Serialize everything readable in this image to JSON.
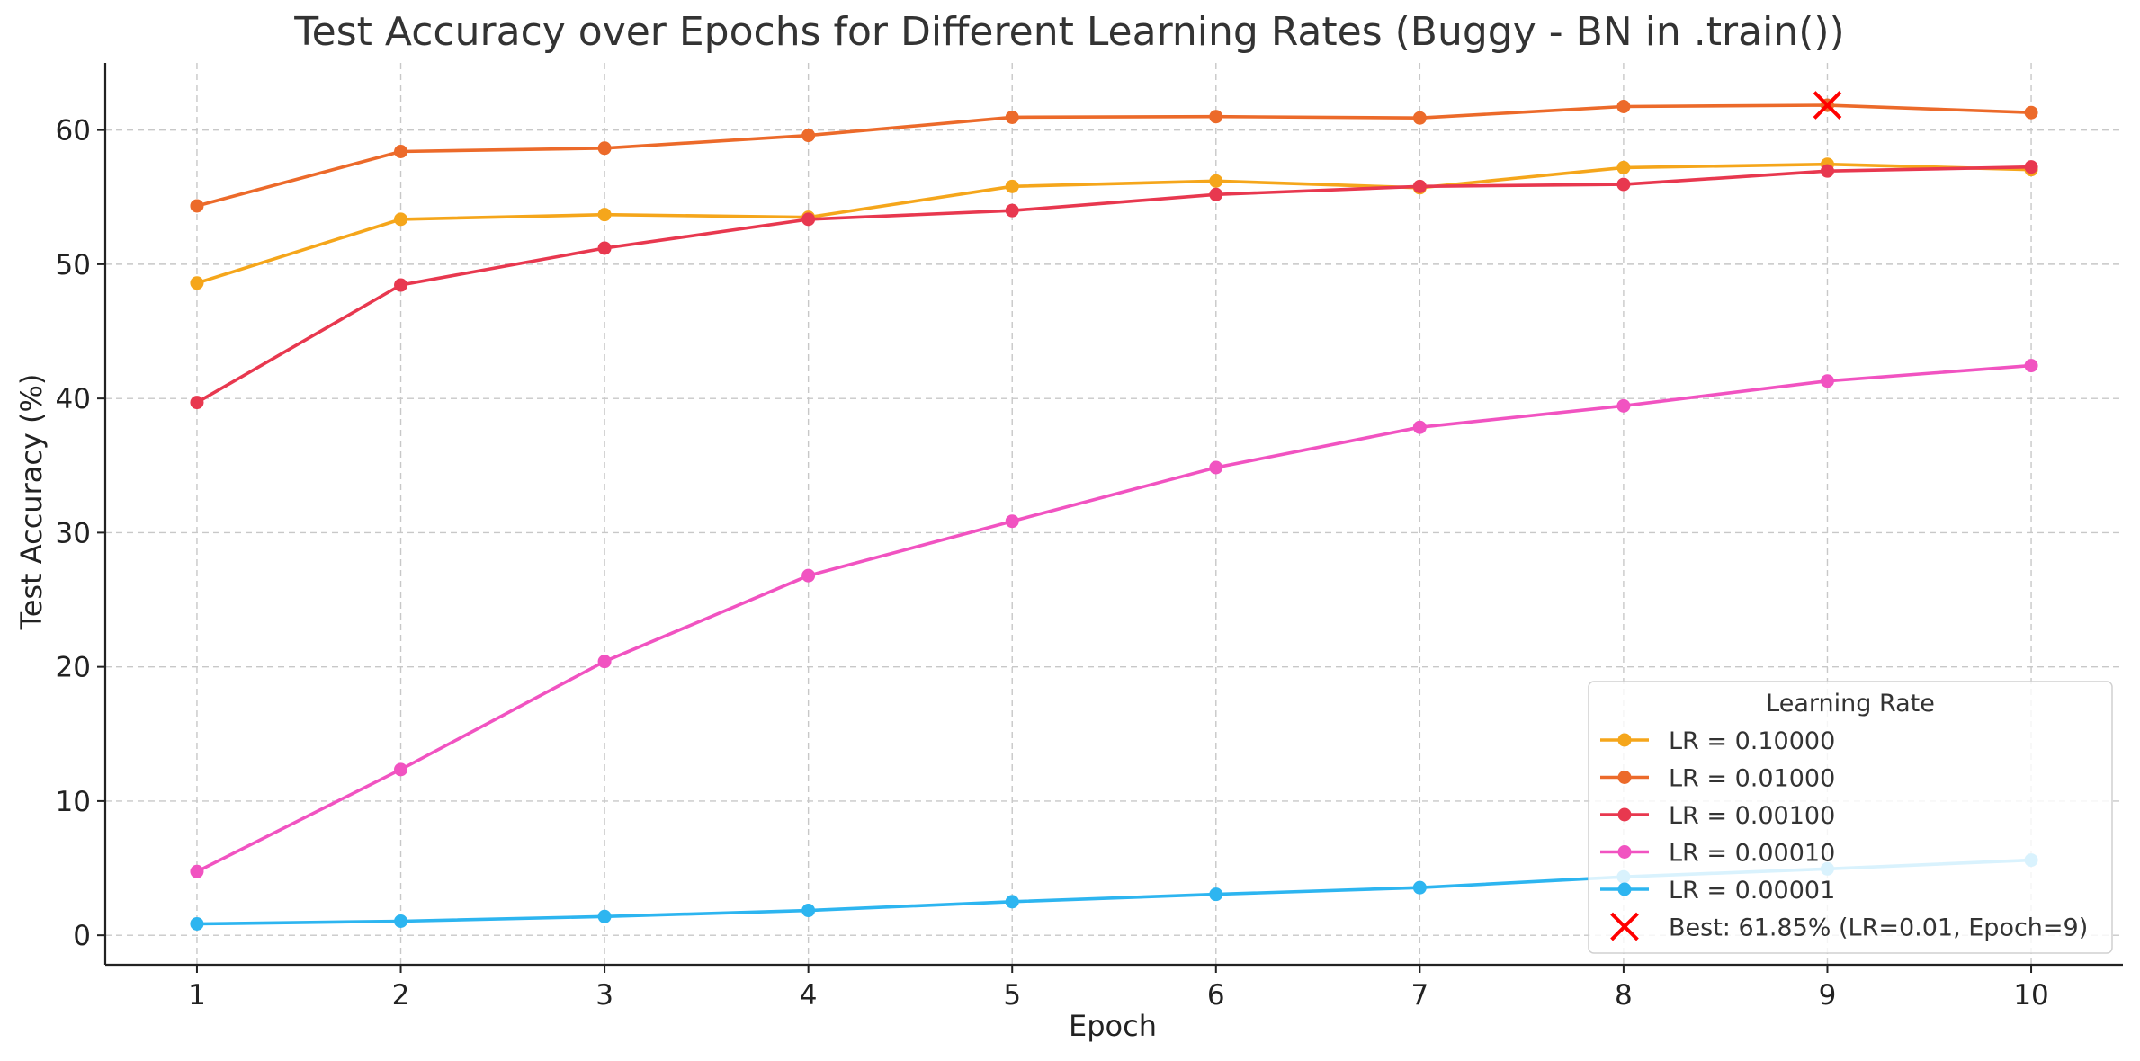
{
  "chart_data": {
    "type": "line",
    "title": "Test Accuracy over Epochs for Different Learning Rates (Buggy - BN in .train())",
    "xlabel": "Epoch",
    "ylabel": "Test Accuracy (%)",
    "x": [
      1,
      2,
      3,
      4,
      5,
      6,
      7,
      8,
      9,
      10
    ],
    "xticks": [
      "1",
      "2",
      "3",
      "4",
      "5",
      "6",
      "7",
      "8",
      "9",
      "10"
    ],
    "xlim": [
      0.55,
      10.45
    ],
    "yticks": [
      "0",
      "10",
      "20",
      "30",
      "40",
      "50",
      "60"
    ],
    "ylim": [
      -2.2,
      65
    ],
    "grid": true,
    "legend": {
      "title": "Learning Rate",
      "placement": "lower-right"
    },
    "series": [
      {
        "name": "LR = 0.10000",
        "color": "#f5a61b",
        "values": [
          48.6,
          53.35,
          53.7,
          53.5,
          55.8,
          56.2,
          55.7,
          57.2,
          57.45,
          57.05
        ]
      },
      {
        "name": "LR = 0.01000",
        "color": "#ec6a2a",
        "values": [
          54.35,
          58.4,
          58.65,
          59.6,
          60.95,
          61.0,
          60.9,
          61.75,
          61.85,
          61.3
        ]
      },
      {
        "name": "LR = 0.00100",
        "color": "#e8384f",
        "values": [
          39.7,
          48.45,
          51.2,
          53.35,
          54.0,
          55.2,
          55.8,
          55.95,
          56.95,
          57.25
        ]
      },
      {
        "name": "LR = 0.00010",
        "color": "#f153c1",
        "values": [
          4.75,
          12.35,
          20.4,
          26.8,
          30.85,
          34.85,
          37.85,
          39.45,
          41.3,
          42.45
        ]
      },
      {
        "name": "LR = 0.00001",
        "color": "#2db5f0",
        "values": [
          0.85,
          1.05,
          1.4,
          1.85,
          2.5,
          3.05,
          3.55,
          4.35,
          4.95,
          5.6
        ]
      }
    ],
    "best": {
      "label": "Best: 61.85% (LR=0.01, Epoch=9)",
      "x": 9,
      "y": 61.85,
      "marker": "x",
      "color": "#ff0000"
    }
  }
}
